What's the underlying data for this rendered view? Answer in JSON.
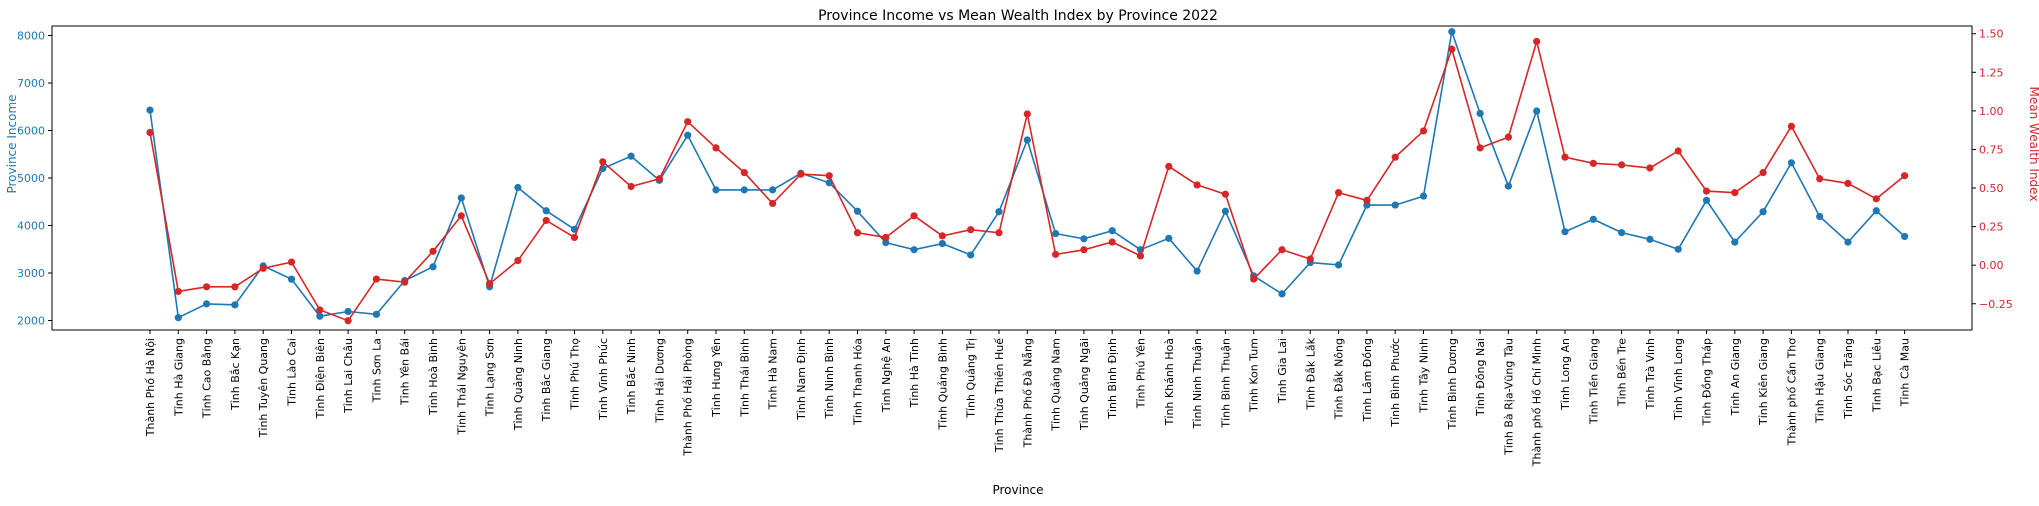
{
  "chart_data": {
    "type": "line",
    "title": "Province Income vs Mean Wealth Index by Province 2022",
    "xlabel": "Province",
    "ylabel_left": "Province Income",
    "ylabel_right": "Mean Wealth Index",
    "ylim_left": [
      1800,
      8200
    ],
    "ylim_right": [
      -0.42,
      1.55
    ],
    "yticks_left": [
      "2000",
      "3000",
      "4000",
      "5000",
      "6000",
      "7000",
      "8000"
    ],
    "yticks_right": [
      "−0.25",
      "0.00",
      "0.25",
      "0.50",
      "0.75",
      "1.00",
      "1.25",
      "1.50"
    ],
    "grid": false,
    "colors": {
      "left": "#1f77b4",
      "right": "#d62728"
    },
    "categories": [
      "Thành Phố Hà Nội",
      "Tỉnh Hà Giang",
      "Tỉnh Cao Bằng",
      "Tỉnh Bắc Kạn",
      "Tỉnh Tuyên Quang",
      "Tỉnh Lào Cai",
      "Tỉnh Điện Biên",
      "Tỉnh Lai Châu",
      "Tỉnh Sơn La",
      "Tỉnh Yên Bái",
      "Tỉnh Hoà Bình",
      "Tỉnh Thái Nguyên",
      "Tỉnh Lạng Sơn",
      "Tỉnh Quảng Ninh",
      "Tỉnh Bắc Giang",
      "Tỉnh Phú Thọ",
      "Tỉnh Vĩnh Phúc",
      "Tỉnh Bắc Ninh",
      "Tỉnh Hải Dương",
      "Thành Phố Hải Phòng",
      "Tỉnh Hưng Yên",
      "Tỉnh Thái Bình",
      "Tỉnh Hà Nam",
      "Tỉnh Nam Định",
      "Tỉnh Ninh Bình",
      "Tỉnh Thanh Hóa",
      "Tỉnh Nghệ An",
      "Tỉnh Hà Tĩnh",
      "Tỉnh Quảng Bình",
      "Tỉnh Quảng Trị",
      "Tỉnh Thừa Thiên Huế",
      "Thành Phố Đà Nẵng",
      "Tỉnh Quảng Nam",
      "Tỉnh Quảng Ngãi",
      "Tỉnh Bình Định",
      "Tỉnh Phú Yên",
      "Tỉnh Khánh Hoà",
      "Tỉnh Ninh Thuận",
      "Tỉnh Bình Thuận",
      "Tỉnh Kon Tum",
      "Tỉnh Gia Lai",
      "Tỉnh Đắk Lắk",
      "Tỉnh Đắk Nông",
      "Tỉnh Lâm Đồng",
      "Tỉnh Bình Phước",
      "Tỉnh Tây Ninh",
      "Tỉnh Bình Dương",
      "Tỉnh Đồng Nai",
      "Tỉnh Bà Rịa-Vũng Tàu",
      "Thành phố Hồ Chí Minh",
      "Tỉnh Long An",
      "Tỉnh Tiền Giang",
      "Tỉnh Bến Tre",
      "Tỉnh Trà Vinh",
      "Tỉnh Vĩnh Long",
      "Tỉnh Đồng Tháp",
      "Tỉnh An Giang",
      "Tỉnh Kiên Giang",
      "Thành phố Cần Thơ",
      "Tỉnh Hậu Giang",
      "Tỉnh Sóc Trăng",
      "Tỉnh Bạc Liêu",
      "Tỉnh Cà Mau"
    ],
    "series": [
      {
        "name": "Province Income",
        "axis": "left",
        "values": [
          6430,
          2060,
          2350,
          2330,
          3150,
          2870,
          2090,
          2190,
          2130,
          2840,
          3130,
          4580,
          2710,
          4800,
          4310,
          3920,
          5200,
          5460,
          4950,
          5900,
          4750,
          4750,
          4750,
          5100,
          4900,
          4300,
          3640,
          3490,
          3620,
          3380,
          4290,
          5800,
          3830,
          3720,
          3890,
          3490,
          3730,
          3040,
          4300,
          2940,
          2560,
          3220,
          3170,
          4430,
          4430,
          4620,
          8080,
          6360,
          4830,
          6410,
          3870,
          4130,
          3850,
          3710,
          3500,
          4530,
          3650,
          4290,
          5320,
          4190,
          3650,
          4310,
          3770
        ]
      },
      {
        "name": "Mean Wealth Index",
        "axis": "right",
        "values": [
          0.86,
          -0.17,
          -0.14,
          -0.14,
          -0.02,
          0.02,
          -0.29,
          -0.36,
          -0.09,
          -0.11,
          0.09,
          0.32,
          -0.12,
          0.03,
          0.29,
          0.18,
          0.67,
          0.51,
          0.56,
          0.93,
          0.76,
          0.6,
          0.4,
          0.59,
          0.58,
          0.21,
          0.18,
          0.32,
          0.19,
          0.23,
          0.21,
          0.98,
          0.07,
          0.1,
          0.15,
          0.06,
          0.64,
          0.52,
          0.46,
          -0.09,
          0.1,
          0.04,
          0.47,
          0.42,
          0.7,
          0.87,
          1.4,
          0.76,
          0.83,
          1.45,
          0.7,
          0.66,
          0.65,
          0.63,
          0.74,
          0.48,
          0.47,
          0.6,
          0.9,
          0.56,
          0.53,
          0.43,
          0.58
        ]
      }
    ]
  }
}
